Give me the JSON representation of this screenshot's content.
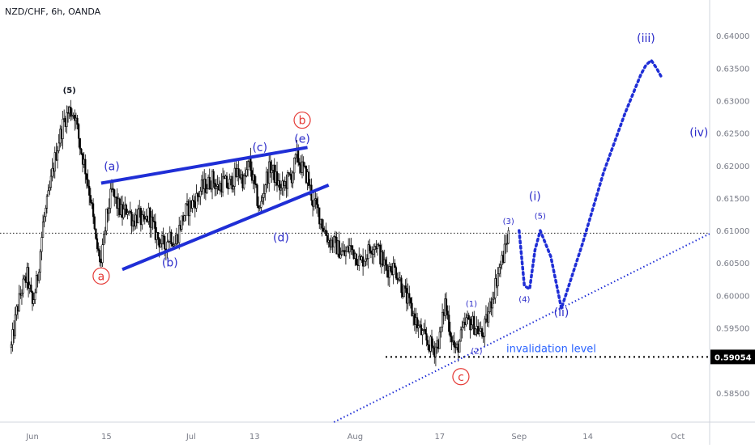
{
  "header": {
    "title": "NZD/CHF, 6h, OANDA"
  },
  "colors": {
    "candle": "#000000",
    "wave_line": "#1f2ed6",
    "label_blue": "#2a2ac9",
    "circle_red": "#e53935",
    "invalidation_text": "#2962ff",
    "price_tag_bg": "#000000",
    "price_tag_text": "#ffffff",
    "axis_text": "#787b86",
    "grid_dotted": "#000000"
  },
  "chart_data": {
    "type": "candlestick",
    "symbol": "NZD/CHF",
    "timeframe": "6h",
    "broker": "OANDA",
    "x_tick_labels": [
      "Jun",
      "15",
      "Jul",
      "13",
      "Aug",
      "17",
      "Sep",
      "14",
      "Oct"
    ],
    "y_tick_labels": [
      "0.64000",
      "0.63500",
      "0.63000",
      "0.62500",
      "0.62000",
      "0.61500",
      "0.61000",
      "0.60500",
      "0.60000",
      "0.59500",
      "0.59054",
      "0.58500"
    ],
    "y_ticks": [
      0.64,
      0.635,
      0.63,
      0.625,
      0.62,
      0.615,
      0.61,
      0.605,
      0.6,
      0.595,
      0.585
    ],
    "ylim": [
      0.5805,
      0.6455
    ],
    "current_price": {
      "value": 0.6096,
      "line": "dotted"
    },
    "invalidation": {
      "value": 0.59054,
      "label": "invalidation level",
      "price_tag": "0.59054"
    },
    "anchors": [
      {
        "label": "Jun 1",
        "d": 0
      },
      {
        "label": "Jun 15",
        "d": 14
      },
      {
        "label": "Jul 1",
        "d": 30
      },
      {
        "label": "Jul 13",
        "d": 42
      },
      {
        "label": "Aug 1",
        "d": 61
      },
      {
        "label": "Aug 17",
        "d": 77
      },
      {
        "label": "Sep 1",
        "d": 92
      },
      {
        "label": "Sep 14",
        "d": 105
      },
      {
        "label": "Oct 1",
        "d": 122
      }
    ],
    "price_path": [
      [
        -4,
        0.592
      ],
      [
        -3,
        0.5975
      ],
      [
        -2,
        0.601
      ],
      [
        -1,
        0.603
      ],
      [
        0,
        0.5985
      ],
      [
        1,
        0.603
      ],
      [
        2,
        0.611
      ],
      [
        3,
        0.615
      ],
      [
        4,
        0.62
      ],
      [
        5,
        0.624
      ],
      [
        6,
        0.627
      ],
      [
        7,
        0.6285
      ],
      [
        8,
        0.628
      ],
      [
        9,
        0.623
      ],
      [
        10,
        0.6195
      ],
      [
        11,
        0.615
      ],
      [
        12,
        0.608
      ],
      [
        13,
        0.6048
      ],
      [
        14,
        0.612
      ],
      [
        15,
        0.616
      ],
      [
        16,
        0.614
      ],
      [
        17,
        0.6125
      ],
      [
        18,
        0.6135
      ],
      [
        19,
        0.6115
      ],
      [
        20,
        0.6125
      ],
      [
        21,
        0.6108
      ],
      [
        22,
        0.6125
      ],
      [
        23,
        0.61
      ],
      [
        24,
        0.6085
      ],
      [
        25,
        0.6075
      ],
      [
        26,
        0.6095
      ],
      [
        27,
        0.608
      ],
      [
        28,
        0.611
      ],
      [
        29,
        0.613
      ],
      [
        30,
        0.614
      ],
      [
        31,
        0.615
      ],
      [
        32,
        0.6165
      ],
      [
        33,
        0.617
      ],
      [
        34,
        0.618
      ],
      [
        35,
        0.6165
      ],
      [
        36,
        0.6175
      ],
      [
        37,
        0.6168
      ],
      [
        38,
        0.618
      ],
      [
        39,
        0.619
      ],
      [
        40,
        0.6175
      ],
      [
        41,
        0.6205
      ],
      [
        42,
        0.6165
      ],
      [
        43,
        0.613
      ],
      [
        44,
        0.6175
      ],
      [
        45,
        0.6198
      ],
      [
        46,
        0.618
      ],
      [
        47,
        0.6162
      ],
      [
        48,
        0.6175
      ],
      [
        49,
        0.6185
      ],
      [
        50,
        0.6215
      ],
      [
        51,
        0.6195
      ],
      [
        52,
        0.6182
      ],
      [
        53,
        0.6145
      ],
      [
        54,
        0.613
      ],
      [
        55,
        0.6105
      ],
      [
        56,
        0.6085
      ],
      [
        57,
        0.608
      ],
      [
        58,
        0.607
      ],
      [
        59,
        0.6062
      ],
      [
        60,
        0.6075
      ],
      [
        61,
        0.6065
      ],
      [
        62,
        0.605
      ],
      [
        63,
        0.6062
      ],
      [
        64,
        0.6075
      ],
      [
        65,
        0.608
      ],
      [
        66,
        0.6055
      ],
      [
        67,
        0.604
      ],
      [
        68,
        0.6045
      ],
      [
        69,
        0.6035
      ],
      [
        70,
        0.601
      ],
      [
        71,
        0.599
      ],
      [
        72,
        0.597
      ],
      [
        73,
        0.595
      ],
      [
        74,
        0.5935
      ],
      [
        75,
        0.5925
      ],
      [
        76,
        0.5918
      ],
      [
        77,
        0.5935
      ],
      [
        78,
        0.599
      ],
      [
        79,
        0.5945
      ],
      [
        80,
        0.5912
      ],
      [
        81,
        0.5935
      ],
      [
        82,
        0.596
      ],
      [
        83,
        0.5958
      ],
      [
        84,
        0.595
      ],
      [
        85,
        0.5938
      ],
      [
        86,
        0.5965
      ],
      [
        87,
        0.6
      ],
      [
        88,
        0.6035
      ],
      [
        89,
        0.606
      ],
      [
        90,
        0.6095
      ]
    ],
    "wedge_lines": [
      {
        "from": [
          13,
          0.6173
        ],
        "to": [
          52,
          0.6228
        ]
      },
      {
        "from": [
          17,
          0.604
        ],
        "to": [
          56,
          0.617
        ]
      }
    ],
    "trend_line": {
      "from": [
        57,
        0.5805
      ],
      "to": [
        128,
        0.6095
      ]
    },
    "projection": [
      [
        92,
        0.61
      ],
      [
        93,
        0.6015
      ],
      [
        94,
        0.601
      ],
      [
        95,
        0.607
      ],
      [
        96,
        0.61
      ],
      [
        98,
        0.606
      ],
      [
        99,
        0.602
      ],
      [
        100,
        0.598
      ],
      [
        104,
        0.608
      ],
      [
        108,
        0.619
      ],
      [
        112,
        0.628
      ],
      [
        115,
        0.634
      ],
      [
        116,
        0.6355
      ],
      [
        117,
        0.6362
      ],
      [
        118,
        0.635
      ],
      [
        119,
        0.6335
      ]
    ],
    "wave_labels": [
      {
        "text": "(5)",
        "d": 7,
        "y": 0.6312,
        "size": 10,
        "color": "#131722",
        "bold": true
      },
      {
        "text": "(a)",
        "d": 15,
        "y": 0.6193,
        "size": 14,
        "color": "#2a2ac9"
      },
      {
        "text": "(b)",
        "d": 26,
        "y": 0.6045,
        "size": 14,
        "color": "#2a2ac9"
      },
      {
        "text": "(c)",
        "d": 43,
        "y": 0.6222,
        "size": 14,
        "color": "#2a2ac9"
      },
      {
        "text": "(d)",
        "d": 47,
        "y": 0.6083,
        "size": 14,
        "color": "#2a2ac9"
      },
      {
        "text": "(e)",
        "d": 51,
        "y": 0.6235,
        "size": 14,
        "color": "#2a2ac9"
      },
      {
        "text": "(1)",
        "d": 83,
        "y": 0.5983,
        "size": 10,
        "color": "#2a2ac9"
      },
      {
        "text": "(2)",
        "d": 84,
        "y": 0.591,
        "size": 10,
        "color": "#2a2ac9"
      },
      {
        "text": "(3)",
        "d": 90,
        "y": 0.611,
        "size": 10,
        "color": "#2a2ac9"
      },
      {
        "text": "(4)",
        "d": 93,
        "y": 0.599,
        "size": 10,
        "color": "#2a2ac9"
      },
      {
        "text": "(5)",
        "d": 96,
        "y": 0.6118,
        "size": 10,
        "color": "#2a2ac9"
      },
      {
        "text": "(i)",
        "d": 95,
        "y": 0.6147,
        "size": 14,
        "color": "#2a2ac9"
      },
      {
        "text": "(ii)",
        "d": 100,
        "y": 0.5968,
        "size": 14,
        "color": "#2a2ac9"
      },
      {
        "text": "(iii)",
        "d": 116,
        "y": 0.639,
        "size": 14,
        "color": "#2a2ac9"
      },
      {
        "text": "(iv)",
        "d": 126,
        "y": 0.6245,
        "size": 14,
        "color": "#2a2ac9"
      }
    ],
    "circle_labels": [
      {
        "text": "a",
        "d": 13,
        "y": 0.603
      },
      {
        "text": "b",
        "d": 51,
        "y": 0.627
      },
      {
        "text": "c",
        "d": 81,
        "y": 0.5875
      }
    ]
  }
}
